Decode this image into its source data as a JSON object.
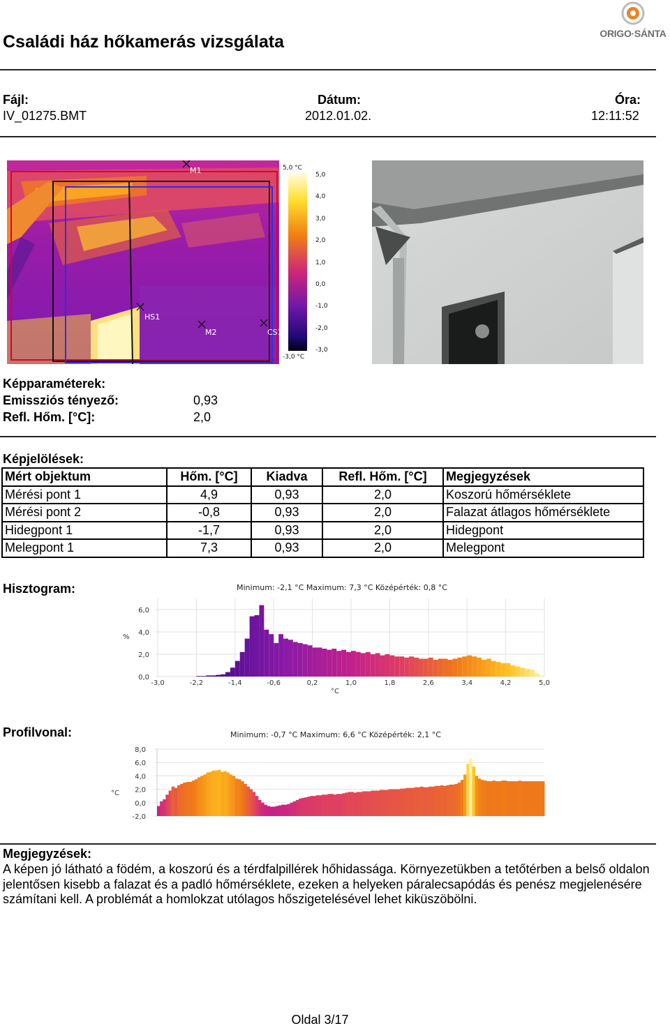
{
  "header": {
    "title": "Családi ház hőkamerás vizsgálata",
    "logo_text": "ORIGO·SÁNTA",
    "brand_color": "#e8832a"
  },
  "file_info": {
    "file_label": "Fájl:",
    "file_value": "IV_01275.BMT",
    "date_label": "Dátum:",
    "date_value": "2012.01.02.",
    "time_label": "Óra:",
    "time_value": "12:11:52"
  },
  "thermal_image": {
    "markers": [
      "M1",
      "M2",
      "HS1",
      "CS1"
    ],
    "scale_top": "5,0 °C",
    "scale_bottom": "-3,0 °C",
    "scale_ticks": [
      "5,0",
      "4,0",
      "3,0",
      "2,0",
      "1,0",
      "0,0",
      "-1,0",
      "-2,0",
      "-3,0"
    ]
  },
  "image_params": {
    "heading": "Képparaméterek:",
    "emissivity_label": "Emissziós tényező:",
    "emissivity_value": "0,93",
    "refl_label": "Refl. Hőm. [°C]:",
    "refl_value": "2,0"
  },
  "markings": {
    "heading": "Képjelölések:",
    "columns": [
      "Mért objektum",
      "Hőm. [°C]",
      "Kiadva",
      "Refl. Hőm. [°C]",
      "Megjegyzések"
    ],
    "rows": [
      [
        "Mérési pont 1",
        "4,9",
        "0,93",
        "2,0",
        "Koszorú hőmérséklete"
      ],
      [
        "Mérési pont 2",
        "-0,8",
        "0,93",
        "2,0",
        "Falazat átlagos hőmérséklete"
      ],
      [
        "Hidegpont 1",
        "-1,7",
        "0,93",
        "2,0",
        "Hidegpont"
      ],
      [
        "Melegpont 1",
        "7,3",
        "0,93",
        "2,0",
        "Melegpont"
      ]
    ]
  },
  "histogram": {
    "heading": "Hisztogram:",
    "stats": "Minimum: -2,1 °C Maximum: 7,3 °C Középérték: 0,8 °C",
    "chart_data": {
      "type": "bar",
      "ylabel": "%",
      "xlabel": "°C",
      "x_ticks": [
        "-3,0",
        "-2,2",
        "-1,4",
        "-0,6",
        "0,2",
        "1,0",
        "1,8",
        "2,6",
        "3,4",
        "4,2",
        "5,0"
      ],
      "y_ticks": [
        "0,0",
        "2,0",
        "4,0",
        "6,0"
      ],
      "xlim": [
        -3.0,
        5.0
      ],
      "ylim": [
        0,
        7.0
      ],
      "bin_start": -2.2,
      "bin_width": 0.1,
      "values": [
        0.05,
        0.05,
        0.1,
        0.1,
        0.15,
        0.2,
        0.4,
        0.8,
        1.4,
        2.2,
        3.4,
        5.4,
        5.5,
        6.4,
        4.2,
        3.8,
        3.0,
        3.8,
        3.4,
        3.3,
        3.1,
        3.0,
        2.9,
        2.8,
        2.6,
        2.6,
        2.5,
        2.4,
        2.5,
        2.3,
        2.4,
        2.2,
        2.3,
        2.2,
        2.1,
        2.2,
        2.0,
        2.1,
        1.9,
        2.0,
        1.9,
        1.8,
        1.8,
        1.7,
        1.8,
        1.7,
        1.6,
        1.6,
        1.7,
        1.5,
        1.6,
        1.6,
        1.5,
        1.6,
        1.7,
        1.8,
        1.9,
        1.8,
        1.7,
        1.5,
        1.6,
        1.4,
        1.3,
        1.2,
        1.2,
        1.0,
        0.9,
        0.8,
        0.7,
        0.6,
        0.3,
        0.1
      ]
    }
  },
  "profile": {
    "heading": "Profilvonal:",
    "stats": "Minimum: -0,7 °C Maximum: 6,6 °C Középérték: 2,1 °C",
    "chart_data": {
      "type": "bar",
      "ylabel": "°C",
      "y_ticks": [
        "-2,0",
        "0,0",
        "2,0",
        "4,0",
        "6,0",
        "8,0"
      ],
      "ylim": [
        -2.0,
        8.0
      ],
      "values": [
        -0.5,
        0.2,
        0.5,
        1.2,
        1.8,
        2.4,
        2.2,
        2.6,
        2.8,
        3.0,
        3.1,
        3.1,
        3.3,
        3.5,
        3.8,
        4.0,
        4.2,
        4.5,
        4.6,
        4.8,
        4.8,
        4.9,
        4.6,
        4.7,
        4.5,
        4.2,
        4.0,
        3.6,
        3.5,
        3.2,
        2.8,
        2.4,
        2.0,
        1.6,
        1.0,
        0.4,
        0.0,
        -0.3,
        -0.5,
        -0.6,
        -0.6,
        -0.5,
        -0.4,
        -0.3,
        -0.3,
        -0.2,
        0.0,
        0.2,
        0.4,
        0.6,
        0.7,
        0.8,
        0.9,
        1.0,
        1.0,
        1.1,
        1.1,
        1.2,
        1.2,
        1.3,
        1.3,
        1.2,
        1.3,
        1.3,
        1.4,
        1.5,
        1.6,
        1.6,
        1.5,
        1.6,
        1.6,
        1.7,
        1.7,
        1.7,
        1.8,
        1.8,
        1.8,
        1.9,
        1.9,
        1.9,
        2.0,
        2.0,
        2.0,
        2.0,
        2.1,
        2.1,
        2.2,
        2.2,
        2.2,
        2.3,
        2.3,
        2.4,
        2.3,
        2.3,
        2.4,
        2.4,
        2.5,
        2.5,
        2.6,
        2.5,
        2.6,
        2.7,
        2.7,
        2.8,
        3.0,
        3.4,
        4.2,
        5.8,
        6.6,
        5.4,
        4.0,
        3.6,
        3.4,
        3.3,
        3.2,
        3.2,
        3.3,
        3.2,
        3.2,
        3.3,
        3.3,
        3.2,
        3.2,
        3.2,
        3.2,
        3.3,
        3.2,
        3.2,
        3.2,
        3.2,
        3.2,
        3.2,
        3.2,
        3.2
      ]
    }
  },
  "notes": {
    "heading": "Megjegyzések:",
    "text": "A képen jó látható a födém, a koszorú és a térdfalpillérek hőhidassága. Környezetükben a tetőtérben a belső oldalon jelentősen kisebb a falazat és a padló hőmérséklete, ezeken a helyeken páralecsapódás és penész megjelenésére számítani kell. A problémát a homlokzat utólagos hőszigetelésével lehet kiküszöbölni."
  },
  "footer": {
    "page": "Oldal 3/17"
  }
}
